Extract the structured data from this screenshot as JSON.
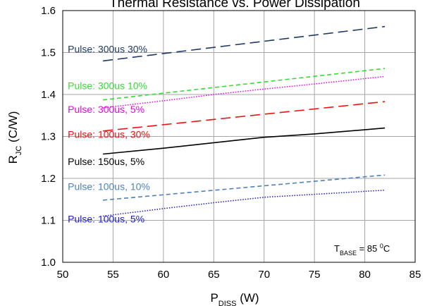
{
  "chart_data": {
    "type": "line",
    "title": "Thermal Resistance vs. Power Dissipation",
    "xlabel": {
      "main": "P",
      "sub": "DISS",
      "unit": " (W)"
    },
    "ylabel": {
      "main": "R",
      "sub": "JC",
      "unit": " (C/W)"
    },
    "xlim": [
      50,
      85
    ],
    "ylim": [
      1.0,
      1.6
    ],
    "xticks": [
      "50",
      "55",
      "60",
      "65",
      "70",
      "75",
      "80",
      "85"
    ],
    "yticks": [
      "1.0",
      "1.1",
      "1.2",
      "1.3",
      "1.4",
      "1.5",
      "1.6"
    ],
    "grid": true,
    "annotation": {
      "main": "T",
      "sub": "BASE",
      "value": " = 85 ",
      "sup": "0",
      "unit": "C"
    },
    "series": [
      {
        "name": "Pulse: 300us 30%",
        "color": "#1f3864",
        "style": "dash-long",
        "x": [
          54,
          82
        ],
        "y": [
          1.48,
          1.562
        ]
      },
      {
        "name": "Pulse: 300us 10%",
        "color": "#33dd33",
        "style": "dash",
        "x": [
          54,
          82
        ],
        "y": [
          1.387,
          1.462
        ]
      },
      {
        "name": "Pulse: 300us, 5%",
        "color": "#ee00ee",
        "style": "dot",
        "x": [
          54,
          60,
          65,
          70,
          75,
          82
        ],
        "y": [
          1.368,
          1.385,
          1.4,
          1.413,
          1.425,
          1.443
        ]
      },
      {
        "name": "Pulse: 100us, 30%",
        "color": "#ee1111",
        "style": "dash-long",
        "x": [
          54,
          82
        ],
        "y": [
          1.313,
          1.383
        ]
      },
      {
        "name": "Pulse: 150us, 5%",
        "color": "#000000",
        "style": "solid",
        "x": [
          54,
          60,
          65,
          70,
          75,
          82
        ],
        "y": [
          1.258,
          1.272,
          1.285,
          1.298,
          1.306,
          1.32
        ]
      },
      {
        "name": "Pulse: 100us, 10%",
        "color": "#4f81bd",
        "style": "dash",
        "x": [
          54,
          82
        ],
        "y": [
          1.148,
          1.208
        ]
      },
      {
        "name": "Pulse: 100us, 5%",
        "color": "#1a1acc",
        "style": "dot",
        "x": [
          54,
          60,
          65,
          70,
          75,
          82
        ],
        "y": [
          1.11,
          1.128,
          1.142,
          1.155,
          1.162,
          1.172
        ]
      }
    ],
    "series_labels": [
      {
        "text": "Pulse: 300us 30%",
        "color": "#1f3864",
        "x": 50.5,
        "y": 1.5
      },
      {
        "text": "Pulse: 300us 10%",
        "color": "#33dd33",
        "x": 50.5,
        "y": 1.413
      },
      {
        "text": "Pulse: 300us, 5%",
        "color": "#ee00ee",
        "x": 50.5,
        "y": 1.356
      },
      {
        "text": "Pulse: 100us, 30%",
        "color": "#ee1111",
        "x": 50.5,
        "y": 1.297
      },
      {
        "text": "Pulse: 150us, 5%",
        "color": "#000000",
        "x": 50.5,
        "y": 1.232
      },
      {
        "text": "Pulse: 100us, 10%",
        "color": "#4f81bd",
        "x": 50.5,
        "y": 1.172
      },
      {
        "text": "Pulse: 100us, 5%",
        "color": "#1a1acc",
        "x": 50.5,
        "y": 1.095
      }
    ]
  }
}
